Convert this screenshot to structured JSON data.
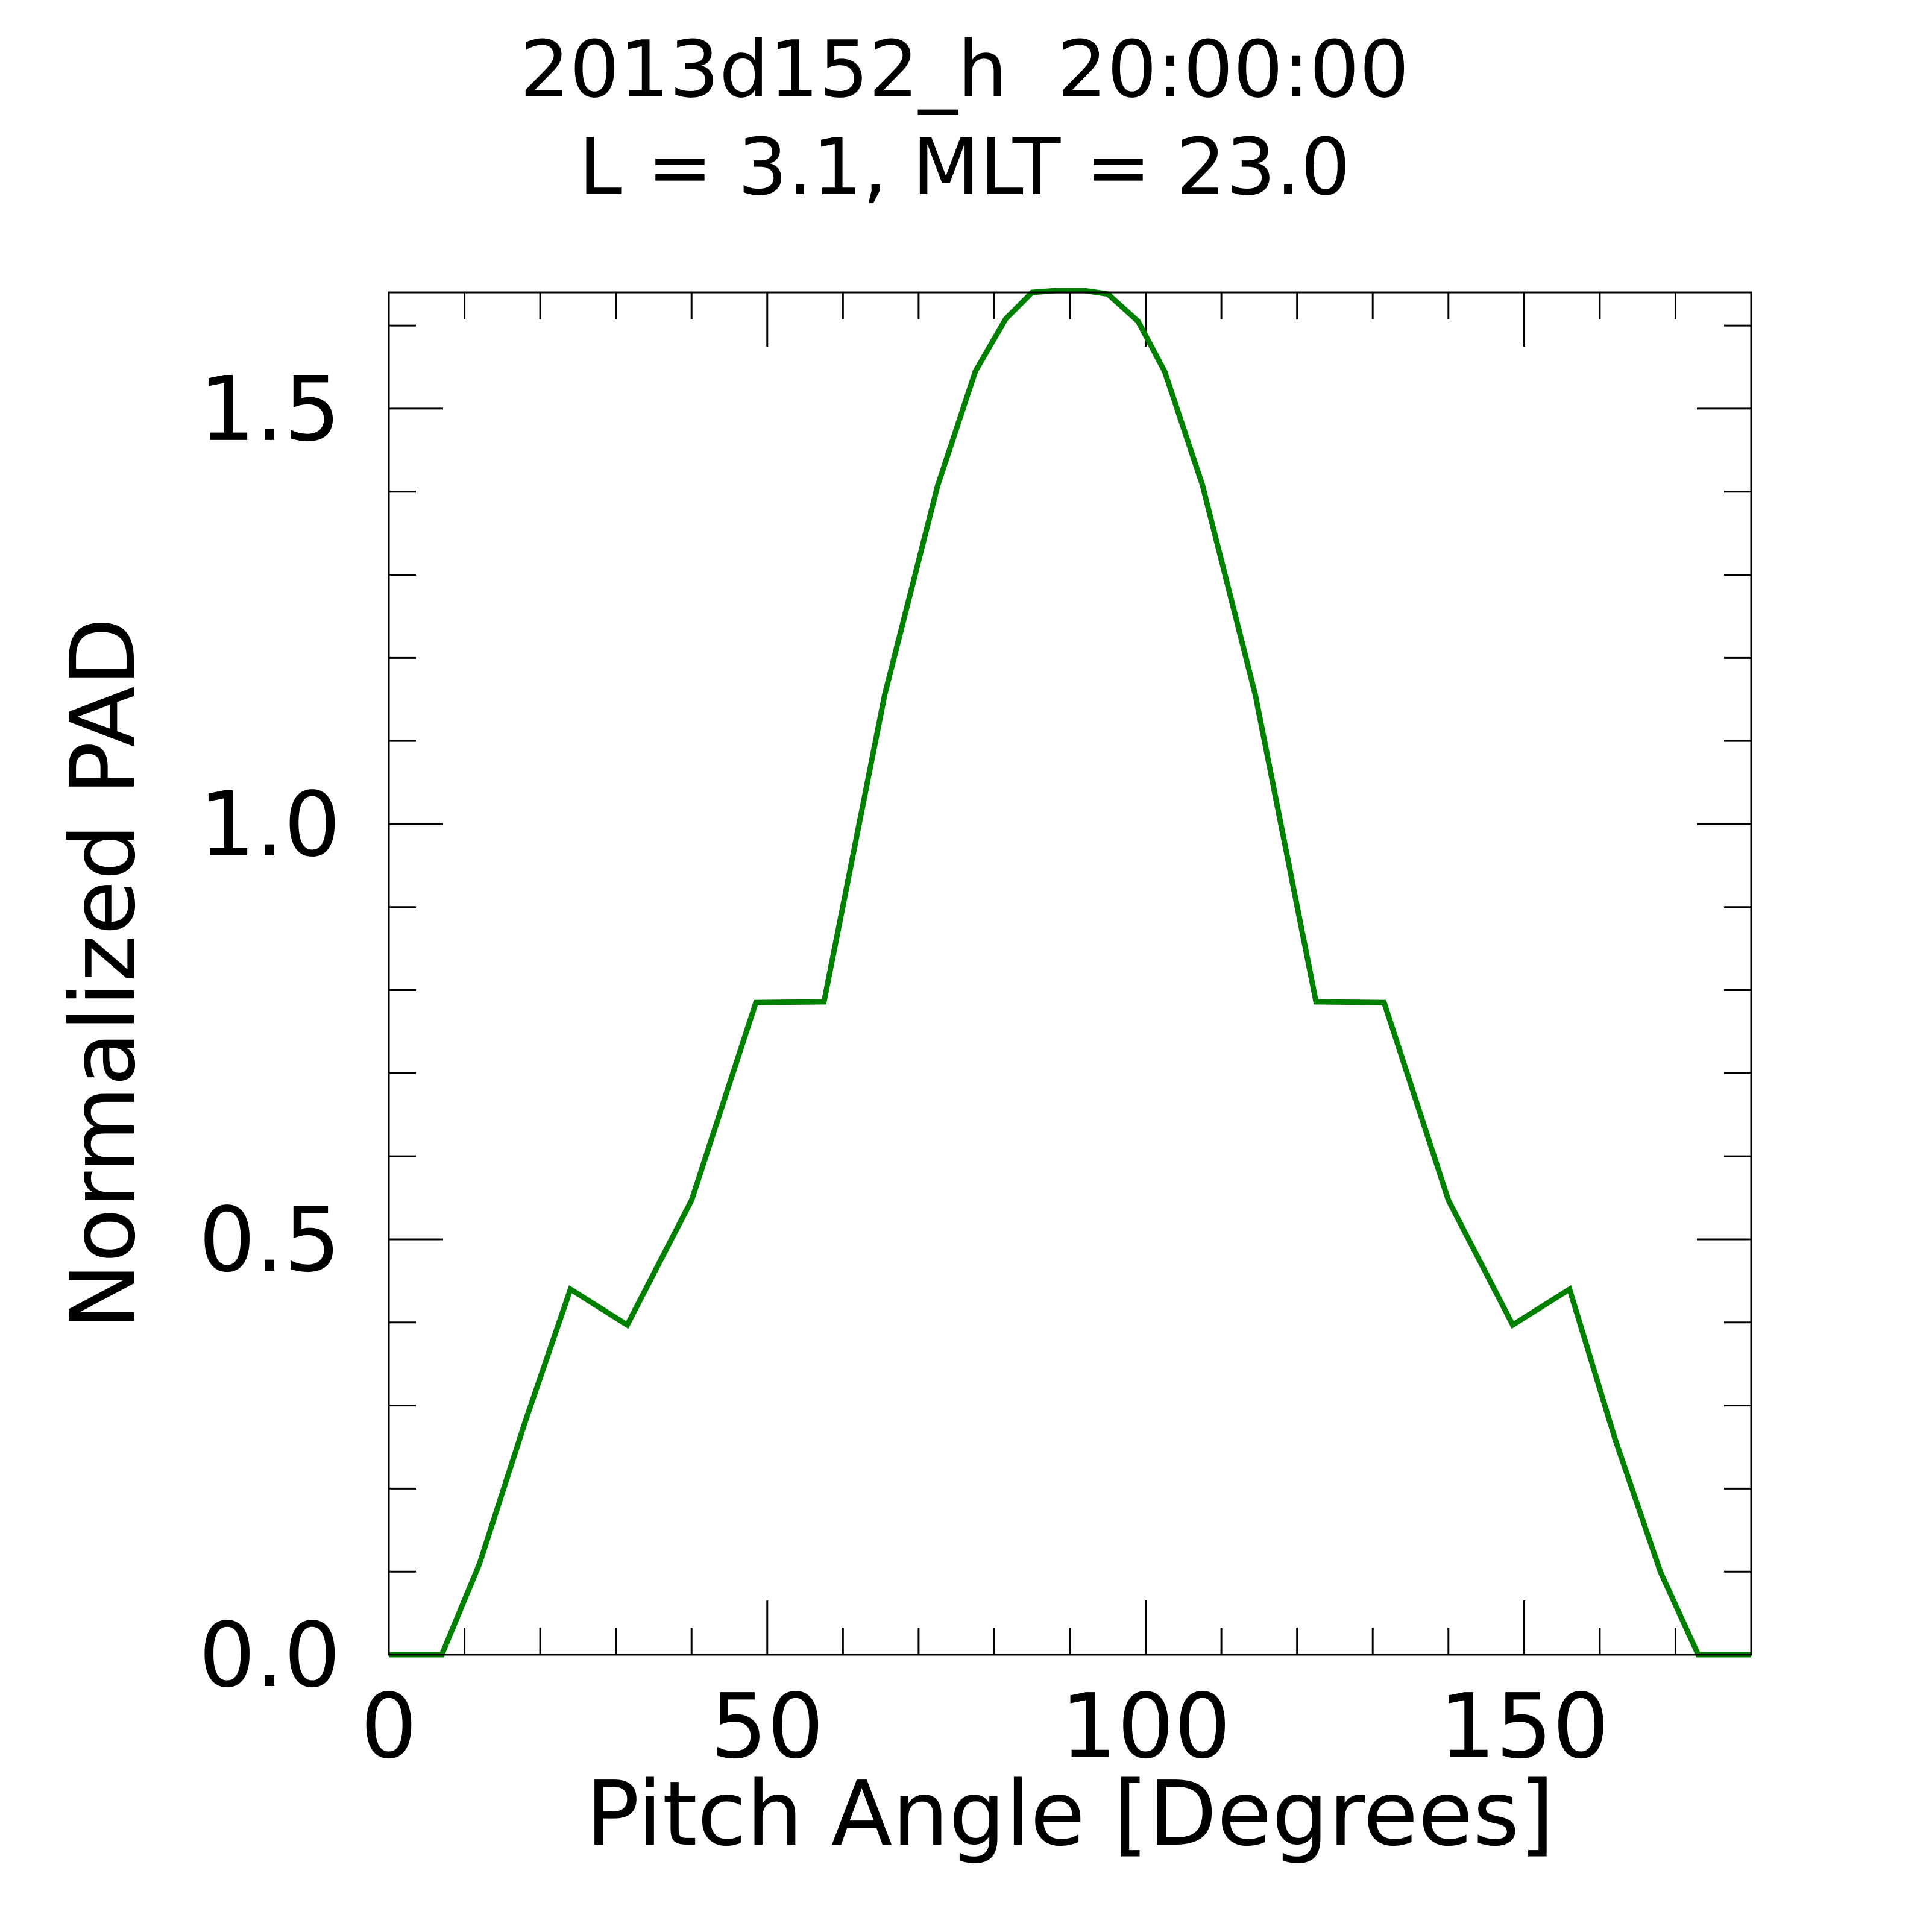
{
  "colors": {
    "series": "#008000",
    "axis": "#000000",
    "background": "#ffffff"
  },
  "chart_data": {
    "type": "line",
    "title": "2013d152_h  20:00:00",
    "subtitle": "L = 3.1, MLT = 23.0",
    "xlabel": "Pitch Angle [Degrees]",
    "ylabel": "Normalized PAD",
    "xlim": [
      0,
      180
    ],
    "ylim": [
      0,
      1.64
    ],
    "grid": false,
    "legend": "none",
    "x_ticks": [
      {
        "value": 0,
        "label": "0"
      },
      {
        "value": 50,
        "label": "50"
      },
      {
        "value": 100,
        "label": "100"
      },
      {
        "value": 150,
        "label": "150"
      }
    ],
    "x_minor_step": 10,
    "y_ticks": [
      {
        "value": 0,
        "label": "0.0"
      },
      {
        "value": 0.5,
        "label": "0.5"
      },
      {
        "value": 1.0,
        "label": "1.0"
      },
      {
        "value": 1.5,
        "label": "1.5"
      }
    ],
    "y_minor_step": 0.1,
    "series": [
      {
        "x": [
          0,
          7,
          12,
          18,
          24,
          31.5,
          40,
          48.5,
          57.5,
          65.5,
          72.5,
          77.5,
          81.5,
          85,
          88,
          92,
          95,
          99,
          102.5,
          107.5,
          114.5,
          122.5,
          131.5,
          140,
          148.5,
          156,
          162,
          168,
          173,
          180
        ],
        "y": [
          0,
          0,
          0.11,
          0.28,
          0.44,
          0.397,
          0.547,
          0.785,
          0.786,
          1.155,
          1.407,
          1.545,
          1.608,
          1.64,
          1.642,
          1.642,
          1.638,
          1.605,
          1.545,
          1.408,
          1.155,
          0.786,
          0.785,
          0.547,
          0.397,
          0.44,
          0.26,
          0.1,
          0,
          0
        ]
      }
    ]
  }
}
